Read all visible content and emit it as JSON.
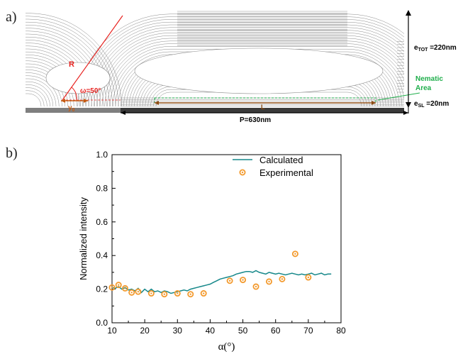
{
  "panel_a": {
    "label": "a)",
    "R_label": "R",
    "omega_label": "ω=50°",
    "y0_label": "y",
    "y0_sub": "0",
    "L_label": "L",
    "nematic_line1": "Nematic",
    "nematic_line2": "Area",
    "etot_main": "e",
    "etot_sub": "TOT",
    "etot_value": " =220nm",
    "esl_main": "e",
    "esl_sub": "SL",
    "esl_value": " =20nm",
    "period_label": "P=630nm",
    "colors": {
      "red": "#e8221f",
      "orange": "#c55a11",
      "green": "#1fae4b",
      "grey": "#7f7f7f",
      "brown": "#8b4a12"
    }
  },
  "panel_b": {
    "label": "b)"
  },
  "chart_data": {
    "type": "line",
    "xlabel": "α(°)",
    "ylabel": "Normalized intensity",
    "xlim": [
      10,
      80
    ],
    "ylim": [
      0.0,
      1.0
    ],
    "xticks": [
      "10",
      "20",
      "30",
      "40",
      "50",
      "60",
      "70",
      "80"
    ],
    "yticks": [
      "0.0",
      "0.2",
      "0.4",
      "0.6",
      "0.8",
      "1.0"
    ],
    "legend_position": "top-right",
    "series": [
      {
        "name": "Calculated",
        "kind": "line",
        "color": "#16888a",
        "points": [
          [
            10,
            0.21
          ],
          [
            11,
            0.205
          ],
          [
            12,
            0.215
          ],
          [
            13,
            0.2
          ],
          [
            14,
            0.21
          ],
          [
            15,
            0.195
          ],
          [
            16,
            0.2
          ],
          [
            17,
            0.19
          ],
          [
            18,
            0.205
          ],
          [
            19,
            0.18
          ],
          [
            20,
            0.2
          ],
          [
            21,
            0.185
          ],
          [
            22,
            0.2
          ],
          [
            23,
            0.185
          ],
          [
            24,
            0.19
          ],
          [
            25,
            0.18
          ],
          [
            26,
            0.19
          ],
          [
            27,
            0.185
          ],
          [
            28,
            0.175
          ],
          [
            29,
            0.18
          ],
          [
            30,
            0.185
          ],
          [
            31,
            0.19
          ],
          [
            32,
            0.195
          ],
          [
            33,
            0.19
          ],
          [
            34,
            0.2
          ],
          [
            35,
            0.205
          ],
          [
            36,
            0.21
          ],
          [
            37,
            0.215
          ],
          [
            38,
            0.22
          ],
          [
            39,
            0.225
          ],
          [
            40,
            0.23
          ],
          [
            41,
            0.24
          ],
          [
            42,
            0.25
          ],
          [
            43,
            0.26
          ],
          [
            44,
            0.265
          ],
          [
            45,
            0.27
          ],
          [
            46,
            0.275
          ],
          [
            47,
            0.28
          ],
          [
            48,
            0.29
          ],
          [
            49,
            0.295
          ],
          [
            50,
            0.3
          ],
          [
            51,
            0.305
          ],
          [
            52,
            0.305
          ],
          [
            53,
            0.3
          ],
          [
            54,
            0.31
          ],
          [
            55,
            0.3
          ],
          [
            56,
            0.295
          ],
          [
            57,
            0.29
          ],
          [
            58,
            0.3
          ],
          [
            59,
            0.295
          ],
          [
            60,
            0.29
          ],
          [
            61,
            0.295
          ],
          [
            62,
            0.29
          ],
          [
            63,
            0.285
          ],
          [
            64,
            0.29
          ],
          [
            65,
            0.295
          ],
          [
            66,
            0.29
          ],
          [
            67,
            0.285
          ],
          [
            68,
            0.29
          ],
          [
            69,
            0.285
          ],
          [
            70,
            0.29
          ],
          [
            71,
            0.295
          ],
          [
            72,
            0.285
          ],
          [
            73,
            0.29
          ],
          [
            74,
            0.295
          ],
          [
            75,
            0.285
          ],
          [
            76,
            0.29
          ],
          [
            77,
            0.29
          ]
        ]
      },
      {
        "name": "Experimental",
        "kind": "scatter",
        "color": "#f39a2e",
        "points": [
          [
            10,
            0.21
          ],
          [
            12,
            0.225
          ],
          [
            14,
            0.205
          ],
          [
            16,
            0.18
          ],
          [
            18,
            0.185
          ],
          [
            22,
            0.175
          ],
          [
            26,
            0.17
          ],
          [
            30,
            0.175
          ],
          [
            34,
            0.17
          ],
          [
            38,
            0.175
          ],
          [
            46,
            0.25
          ],
          [
            50,
            0.255
          ],
          [
            54,
            0.215
          ],
          [
            58,
            0.245
          ],
          [
            62,
            0.26
          ],
          [
            66,
            0.41
          ],
          [
            70,
            0.27
          ]
        ]
      }
    ]
  }
}
